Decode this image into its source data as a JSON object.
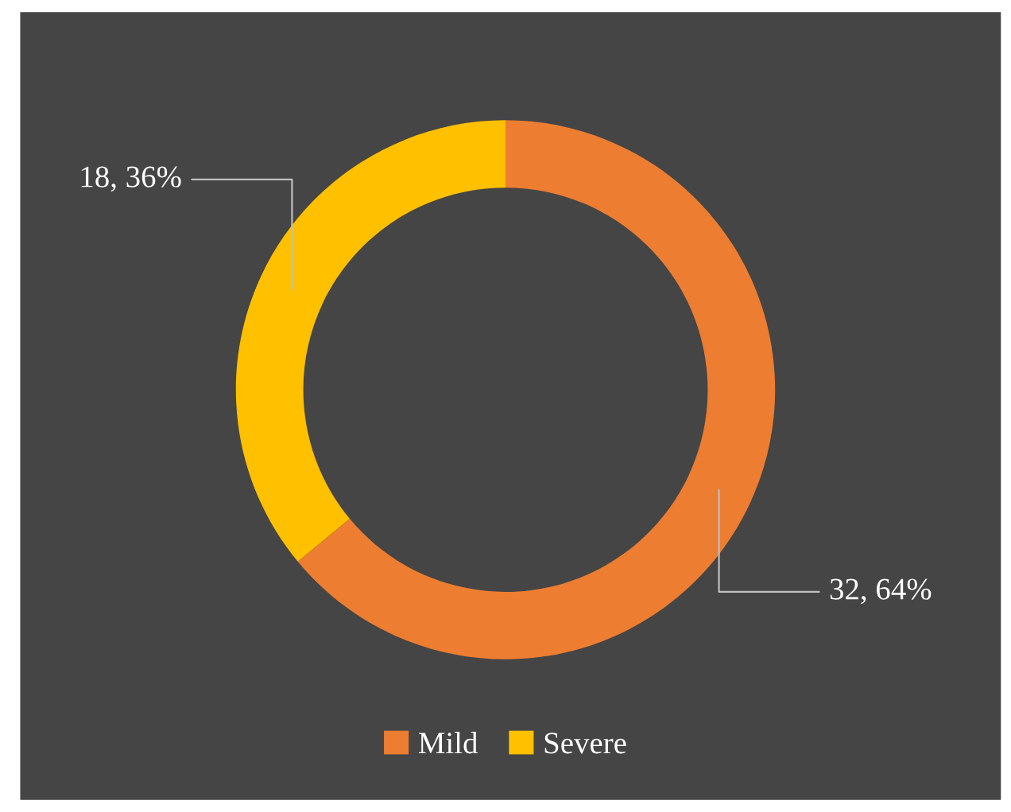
{
  "chart_data": {
    "type": "donut",
    "categories": [
      "Mild",
      "Severe"
    ],
    "values": [
      32,
      18
    ],
    "colors": [
      "#ed7d31",
      "#ffc000"
    ],
    "value_labels": [
      "32, 64%",
      "18, 36%"
    ],
    "legend": "bottom"
  }
}
